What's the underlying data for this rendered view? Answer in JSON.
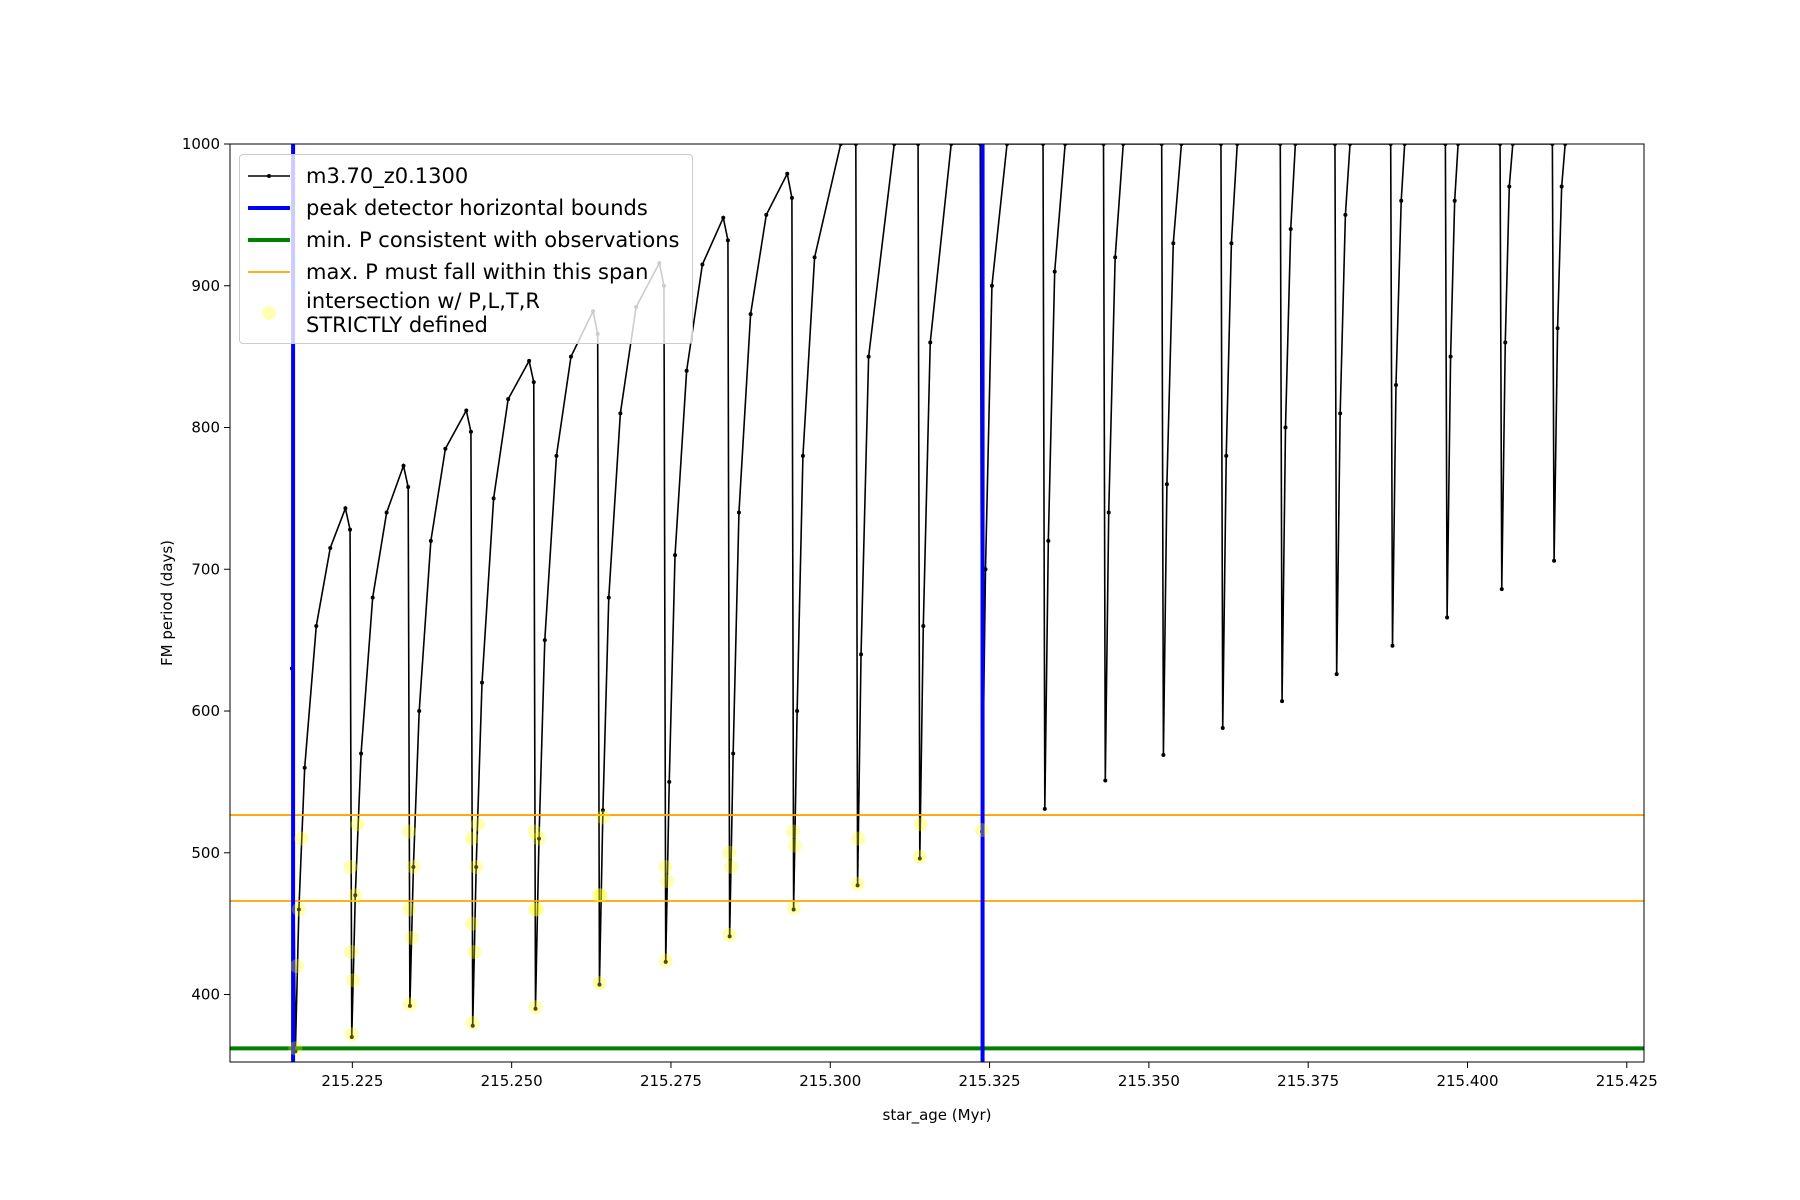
{
  "chart_data": {
    "type": "line",
    "xlabel": "star_age (Myr)",
    "ylabel": "FM period (days)",
    "xlim": [
      215.2058,
      215.4277
    ],
    "ylim": [
      352.4,
      1000
    ],
    "xticks": [
      215.225,
      {
        "value": 215.25,
        "label": "215.250"
      },
      215.275,
      {
        "value": 215.3,
        "label": "215.300"
      },
      215.325,
      {
        "value": 215.35,
        "label": "215.350"
      },
      215.375,
      {
        "value": 215.4,
        "label": "215.400"
      },
      215.425
    ],
    "yticks": [
      400,
      500,
      600,
      700,
      800,
      900,
      1000
    ],
    "legend": "upper left",
    "series": [
      {
        "name": "m3.70_z0.1300",
        "type": "line",
        "color": "#000000",
        "x": [
          215.21551,
          215.21606,
          215.21661,
          215.21752,
          215.21934,
          215.22153,
          215.22391,
          215.22464,
          215.22491,
          215.22546,
          215.22637,
          215.22819,
          215.23038,
          215.23303,
          215.23376,
          215.23403,
          215.23458,
          215.23549,
          215.23732,
          215.2396,
          215.24288,
          215.24361,
          215.24389,
          215.24443,
          215.24535,
          215.24717,
          215.24945,
          215.25274,
          215.25347,
          215.25374,
          215.25429,
          215.2552,
          215.25703,
          215.25931,
          215.26277,
          215.2635,
          215.26378,
          215.26432,
          215.26524,
          215.26706,
          215.26953,
          215.27317,
          215.2739,
          215.27418,
          215.27473,
          215.27564,
          215.27746,
          215.27993,
          215.28321,
          215.28394,
          215.28421,
          215.28476,
          215.28567,
          215.2875,
          215.28996,
          215.29325,
          215.29398,
          215.29425,
          215.2948,
          215.29571,
          215.29754,
          215.30164,
          215.30401,
          215.30429,
          215.30483,
          215.30602,
          215.31004,
          215.31378,
          215.31405,
          215.3146,
          215.31569,
          215.31898,
          215.32354,
          215.32381,
          215.32436,
          215.32537,
          215.32774,
          215.33339,
          215.33367,
          215.33422,
          215.33522,
          215.33686,
          215.34288,
          215.34316,
          215.3437,
          215.34471,
          215.34598,
          215.35201,
          215.35228,
          215.35283,
          215.35383,
          215.35511,
          215.36131,
          215.36159,
          215.36214,
          215.36295,
          215.36387,
          215.37062,
          215.3709,
          215.37144,
          215.37226,
          215.37299,
          215.3792,
          215.37947,
          215.38002,
          215.38084,
          215.38157,
          215.38795,
          215.38823,
          215.38878,
          215.3896,
          215.39014,
          215.39653,
          215.3968,
          215.39735,
          215.39799,
          215.39853,
          215.40511,
          215.40538,
          215.40593,
          215.40656,
          215.40711,
          215.41332,
          215.41359,
          215.41414,
          215.41478,
          215.41533
        ],
        "values": [
          630,
          360,
          460,
          560,
          660,
          715,
          743,
          728,
          370,
          470,
          570,
          680,
          740,
          773,
          758,
          392,
          490,
          600,
          720,
          785,
          812,
          797,
          378,
          490,
          620,
          750,
          820,
          847,
          832,
          390,
          510,
          650,
          780,
          850,
          882,
          866,
          407,
          530,
          680,
          810,
          885,
          916,
          900,
          423,
          550,
          710,
          840,
          915,
          948,
          932,
          441,
          570,
          740,
          880,
          950,
          979,
          962,
          460,
          600,
          780,
          920,
          1000,
          1000,
          477,
          640,
          850,
          1000,
          1000,
          496,
          660,
          860,
          1000,
          1000,
          515,
          700,
          900,
          1000,
          1000,
          531,
          720,
          910,
          1000,
          1000,
          551,
          740,
          920,
          1000,
          1000,
          569,
          760,
          930,
          1000,
          1000,
          588,
          780,
          930,
          1000,
          1000,
          607,
          800,
          940,
          1000,
          1000,
          626,
          810,
          950,
          1000,
          1000,
          646,
          830,
          960,
          1000,
          1000,
          666,
          850,
          960,
          1000,
          1000,
          686,
          860,
          970,
          1000,
          1000,
          706,
          870,
          970,
          1000
        ]
      },
      {
        "name": "intersection w/ P,L,T,R\nSTRICTLY defined",
        "type": "scatter",
        "color": "#ffff00",
        "x": [
          215.21606,
          215.2163,
          215.21661,
          215.217,
          215.22491,
          215.2248,
          215.2247,
          215.22515,
          215.22546,
          215.2258,
          215.23403,
          215.23395,
          215.2339,
          215.2343,
          215.23458,
          215.24389,
          215.2438,
          215.24375,
          215.24415,
          215.24443,
          215.2447,
          215.25374,
          215.25365,
          215.2536,
          215.254,
          215.25429,
          215.26378,
          215.2637,
          215.264,
          215.26432,
          215.27418,
          215.2741,
          215.2744,
          215.28421,
          215.28413,
          215.28445,
          215.29425,
          215.29418,
          215.29445,
          215.30429,
          215.3044,
          215.31405,
          215.3142,
          215.32381
        ],
        "values": [
          362,
          420,
          460,
          510,
          372,
          430,
          490,
          410,
          470,
          520,
          393,
          460,
          515,
          440,
          490,
          380,
          450,
          510,
          430,
          490,
          520,
          391,
          460,
          515,
          460,
          510,
          408,
          470,
          470,
          525,
          424,
          490,
          480,
          442,
          500,
          490,
          461,
          515,
          505,
          478,
          510,
          497,
          520,
          516
        ]
      }
    ],
    "vlines": [
      {
        "name": "peak detector horizontal bounds",
        "color": "#0000ff",
        "x": [
          215.2157,
          215.3239
        ]
      }
    ],
    "hlines": [
      {
        "name": "min. P consistent with observations",
        "color": "#008000",
        "y": [
          362
        ]
      },
      {
        "name": "max. P must fall within this span",
        "color": "#ffa500",
        "y": [
          466,
          526.6
        ]
      }
    ]
  }
}
